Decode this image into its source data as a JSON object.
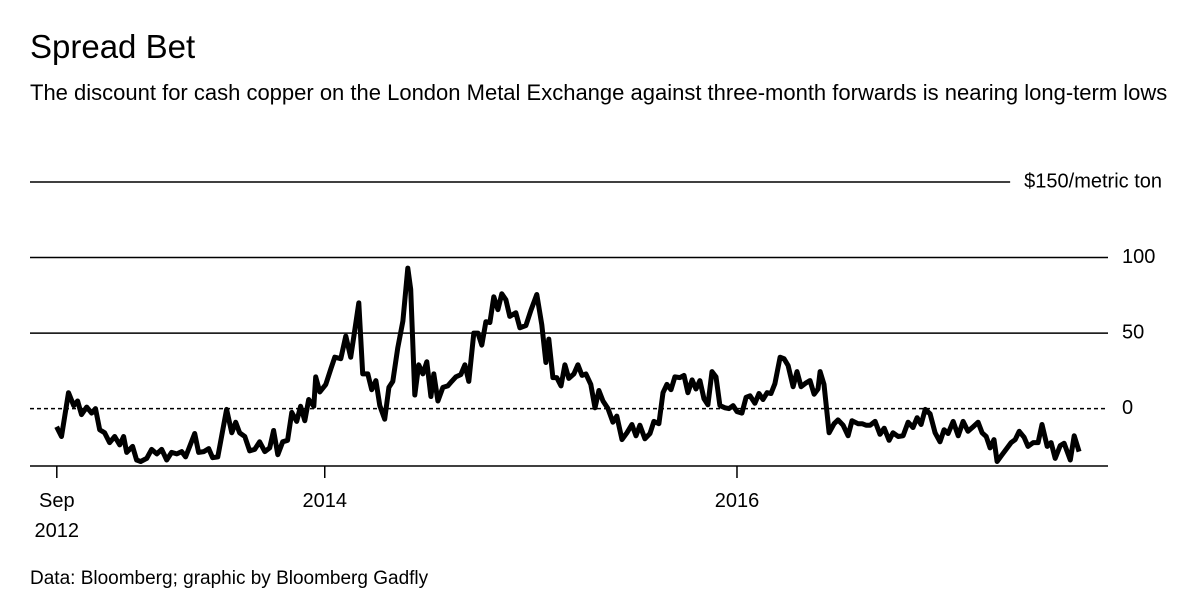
{
  "chart_data": {
    "type": "line",
    "title": "Spread Bet",
    "subtitle": "The discount for cash copper on the London Metal Exchange against three-month forwards is nearing long-term lows",
    "source": "Data: Bloomberg; graphic by Bloomberg Gadfly",
    "xlim": [
      2012.57,
      2017.8
    ],
    "xticks": [
      {
        "value": 2012.7,
        "label": "Sep 2012"
      },
      2014,
      2016
    ],
    "ylim": [
      -38,
      150
    ],
    "yticks": [
      0,
      50,
      100,
      {
        "value": 150,
        "label": "$150/metric ton"
      }
    ],
    "grid": true,
    "x": [
      2012.699,
      2012.723,
      2012.757,
      2012.782,
      2012.801,
      2012.82,
      2012.845,
      2012.869,
      2012.888,
      2012.908,
      2012.932,
      2012.956,
      2012.981,
      2013.005,
      2013.024,
      2013.039,
      2013.068,
      2013.087,
      2013.107,
      2013.136,
      2013.16,
      2013.185,
      2013.209,
      2013.233,
      2013.257,
      2013.282,
      2013.306,
      2013.325,
      2013.345,
      2013.369,
      2013.388,
      2013.413,
      2013.437,
      2013.456,
      2013.481,
      2013.5,
      2013.524,
      2013.549,
      2013.568,
      2013.587,
      2013.612,
      2013.636,
      2013.66,
      2013.684,
      2013.709,
      2013.733,
      2013.752,
      2013.772,
      2013.796,
      2013.82,
      2013.84,
      2013.864,
      2013.883,
      2013.903,
      2013.922,
      2013.947,
      2013.956,
      2013.976,
      2014.005,
      2014.029,
      2014.049,
      2014.078,
      2014.102,
      2014.126,
      2014.146,
      2014.165,
      2014.184,
      2014.209,
      2014.228,
      2014.248,
      2014.267,
      2014.291,
      2014.311,
      2014.33,
      2014.354,
      2014.379,
      2014.403,
      2014.417,
      2014.437,
      2014.456,
      2014.476,
      2014.495,
      2014.515,
      2014.529,
      2014.549,
      2014.573,
      2014.597,
      2014.616,
      2014.636,
      2014.66,
      2014.68,
      2014.699,
      2014.723,
      2014.743,
      2014.762,
      2014.782,
      2014.801,
      2014.82,
      2014.84,
      2014.859,
      2014.879,
      2014.898,
      2014.927,
      2014.947,
      2014.976,
      2015.0,
      2015.029,
      2015.053,
      2015.073,
      2015.087,
      2015.107,
      2015.126,
      2015.146,
      2015.165,
      2015.184,
      2015.209,
      2015.228,
      2015.248,
      2015.267,
      2015.291,
      2015.311,
      2015.33,
      2015.35,
      2015.374,
      2015.398,
      2015.417,
      2015.442,
      2015.466,
      2015.49,
      2015.51,
      2015.529,
      2015.553,
      2015.578,
      2015.597,
      2015.621,
      2015.641,
      2015.66,
      2015.68,
      2015.699,
      2015.723,
      2015.743,
      2015.762,
      2015.782,
      2015.801,
      2015.82,
      2015.84,
      2015.859,
      2015.879,
      2015.898,
      2015.917,
      2015.942,
      2015.961,
      2015.981,
      2016.0,
      2016.024,
      2016.044,
      2016.063,
      2016.087,
      2016.107,
      2016.126,
      2016.146,
      2016.165,
      2016.184,
      2016.209,
      2016.228,
      2016.248,
      2016.272,
      2016.291,
      2016.311,
      2016.335,
      2016.354,
      2016.374,
      2016.393,
      2016.403,
      2016.422,
      2016.447,
      2016.471,
      2016.49,
      2016.515,
      2016.539,
      2016.558,
      2016.587,
      2016.607,
      2016.626,
      2016.646,
      2016.67,
      2016.694,
      2016.714,
      2016.738,
      2016.757,
      2016.782,
      2016.806,
      2016.83,
      2016.854,
      2016.874,
      2016.893,
      2016.913,
      2016.937,
      2016.961,
      2016.985,
      2017.005,
      2017.024,
      2017.049,
      2017.073,
      2017.097,
      2017.121,
      2017.146,
      2017.17,
      2017.189,
      2017.209,
      2017.228,
      2017.247,
      2017.262,
      2017.286,
      2017.311,
      2017.33,
      2017.35,
      2017.369,
      2017.393,
      2017.412,
      2017.437,
      2017.461,
      2017.48,
      2017.505,
      2017.524,
      2017.544,
      2017.568,
      2017.587,
      2017.617,
      2017.636,
      2017.66
    ],
    "series": [
      {
        "color": "#000000",
        "values": [
          -12,
          -18.5,
          10.5,
          2,
          5,
          -4,
          1,
          -3,
          0,
          -14,
          -16,
          -22.5,
          -18.5,
          -24,
          -18.5,
          -29,
          -25,
          -34,
          -35,
          -33,
          -27,
          -30,
          -27,
          -34,
          -29,
          -30,
          -28.5,
          -32,
          -25,
          -16.5,
          -29,
          -28.5,
          -26.5,
          -32.5,
          -32,
          -18,
          -0.5,
          -16,
          -9,
          -16,
          -18.5,
          -28,
          -27,
          -22,
          -28.5,
          -26,
          -14.5,
          -30.5,
          -22,
          -21,
          -2.5,
          -8.5,
          1.5,
          -8,
          6,
          1.5,
          21,
          11,
          16,
          26,
          34,
          33,
          48,
          34,
          52,
          70,
          23,
          23,
          12.5,
          18.5,
          2,
          -7,
          14,
          18,
          40,
          58,
          93,
          79,
          9,
          29,
          23,
          31,
          8,
          23,
          5,
          14,
          15,
          18,
          21,
          22.5,
          29,
          18,
          50,
          50,
          42,
          57.5,
          57,
          74,
          65.5,
          76,
          72,
          61,
          63.5,
          53.5,
          55,
          65,
          75.5,
          55.5,
          30.5,
          46,
          20.5,
          20.5,
          15,
          29,
          20,
          23,
          29,
          22,
          23,
          16,
          0.5,
          12,
          5,
          0,
          -9,
          -5,
          -20.5,
          -16,
          -10.5,
          -18,
          -11,
          -20,
          -16.5,
          -8.5,
          -10,
          10.5,
          16,
          12.5,
          21,
          20.5,
          22,
          10.5,
          19,
          13,
          18.5,
          6.5,
          2.5,
          24.5,
          21,
          2,
          0.5,
          0,
          2,
          -2,
          -3,
          7.5,
          8.5,
          3.5,
          10,
          6,
          10.5,
          10,
          16.5,
          34,
          33,
          28.5,
          14.5,
          24.5,
          14.5,
          17,
          18.5,
          9.5,
          13,
          24.5,
          16,
          -16,
          -10,
          -7.5,
          -11,
          -18,
          -8,
          -10,
          -10,
          -11,
          -11,
          -8.5,
          -17,
          -13,
          -21,
          -16,
          -18.5,
          -18,
          -9,
          -12.5,
          -6,
          -10.5,
          -0.5,
          -3.5,
          -16,
          -22,
          -14,
          -16.5,
          -8.5,
          -18,
          -8.5,
          -15,
          -12,
          -9,
          -16,
          -18.5,
          -26,
          -20.5,
          -35,
          -30.5,
          -26,
          -22.5,
          -20.5,
          -15,
          -19,
          -25,
          -22.5,
          -22.5,
          -10.5,
          -25,
          -22.5,
          -33,
          -24.5,
          -23,
          -34,
          -18,
          -28.5
        ]
      }
    ]
  }
}
